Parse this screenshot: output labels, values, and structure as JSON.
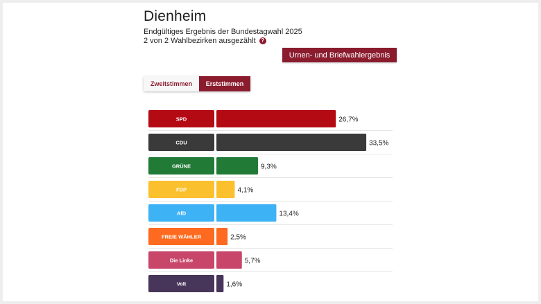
{
  "header": {
    "title": "Dienheim",
    "subtitle": "Endgültiges Ergebnis der Bundestagwahl 2025",
    "counted": "2 von 2 Wahlbezirken ausgezählt",
    "help_icon": "question-circle-icon"
  },
  "result_button_label": "Urnen- und Briefwahlergebnis",
  "tabs": [
    {
      "label": "Zweitstimmen",
      "active": false
    },
    {
      "label": "Erststimmen",
      "active": true
    }
  ],
  "colors": {
    "accent": "#8a1c2e"
  },
  "chart_data": {
    "type": "bar",
    "orientation": "horizontal",
    "categories": [
      "SPD",
      "CDU",
      "GRÜNE",
      "FDP",
      "AfD",
      "FREIE WÄHLER",
      "Die Linke",
      "Volt"
    ],
    "values": [
      26.7,
      33.5,
      9.3,
      4.1,
      13.4,
      2.5,
      5.7,
      1.6
    ],
    "value_labels": [
      "26,7%",
      "33,5%",
      "9,3%",
      "4,1%",
      "13,4%",
      "2,5%",
      "5,7%",
      "1,6%"
    ],
    "colors": [
      "#b40a14",
      "#3a3a3a",
      "#217a36",
      "#fbc02d",
      "#3db2f5",
      "#fe6a1f",
      "#c7466a",
      "#48355a"
    ],
    "unit": "%",
    "grid": false,
    "legend": "none"
  }
}
